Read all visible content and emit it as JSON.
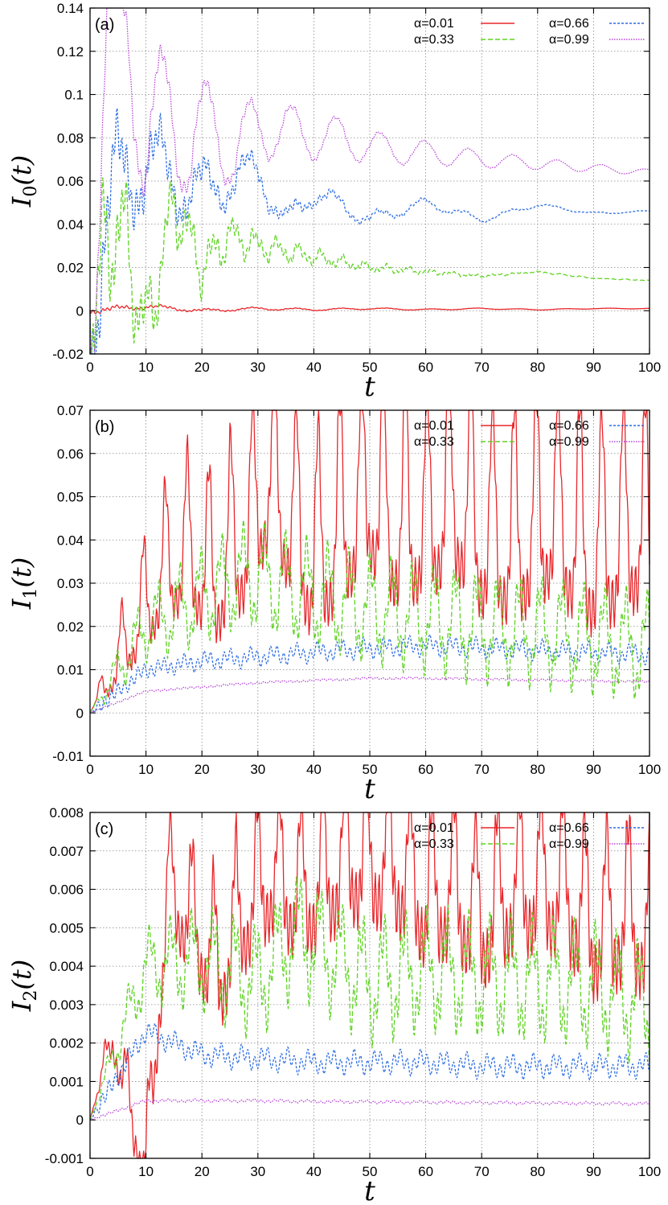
{
  "chart_data": [
    {
      "type": "line",
      "panel_label": "(a)",
      "ylabel": "I",
      "ylabel_sub": "0",
      "ylabel_suffix": "(t)",
      "xlabel": "t",
      "xlim": [
        0,
        100
      ],
      "ylim": [
        -0.02,
        0.14
      ],
      "xticks": [
        "0",
        "10",
        "20",
        "30",
        "40",
        "50",
        "60",
        "70",
        "80",
        "90",
        "100"
      ],
      "yticks": [
        "-0.02",
        "0",
        "0.02",
        "0.04",
        "0.06",
        "0.08",
        "0.1",
        "0.12",
        "0.14"
      ],
      "grid": true,
      "legend_position": "top-right",
      "series": [
        {
          "name": "α=0.01",
          "color": "#e8262a",
          "dash": "solid",
          "model": {
            "base": 0.0005,
            "amp": 0.001,
            "decay": 0.02,
            "period": 8,
            "jitter": 0.0012,
            "startPeak": 0.0
          },
          "x": [
            0,
            5,
            10,
            20,
            30,
            40,
            50,
            60,
            70,
            80,
            90,
            100
          ],
          "values": [
            0,
            0.001,
            0.002,
            0.0,
            0.001,
            0.0005,
            0.001,
            0.0005,
            0.001,
            0.0005,
            0.001,
            0.001
          ]
        },
        {
          "name": "α=0.66",
          "color": "#2f6fe0",
          "dash": "3 2",
          "model": {
            "base": 0.046,
            "amp": 0.03,
            "decay": 0.045,
            "period": 7.8,
            "jitter": 0.018,
            "startPeak": 0.09
          },
          "x": [
            0,
            5,
            10,
            15,
            20,
            25,
            30,
            35,
            40,
            50,
            60,
            70,
            80,
            90,
            100
          ],
          "values": [
            0,
            0.06,
            0.07,
            0.06,
            0.055,
            0.06,
            0.065,
            0.04,
            0.055,
            0.042,
            0.05,
            0.042,
            0.049,
            0.045,
            0.046
          ]
        },
        {
          "name": "α=0.33",
          "color": "#5fd323",
          "dash": "6 3",
          "model": {
            "base": 0.015,
            "amp": 0.03,
            "decay": 0.06,
            "period": 3.9,
            "jitter": 0.02,
            "startPeak": 0.07
          },
          "x": [
            0,
            5,
            10,
            15,
            20,
            25,
            30,
            40,
            50,
            60,
            70,
            80,
            90,
            100
          ],
          "values": [
            0,
            0.045,
            -0.01,
            0.05,
            0.02,
            0.035,
            0.03,
            0.025,
            0.02,
            0.018,
            0.016,
            0.018,
            0.015,
            0.014
          ]
        },
        {
          "name": "α=0.99",
          "color": "#b845d8",
          "dash": "1.5 1.5",
          "model": {
            "base": 0.066,
            "amp": 0.045,
            "decay": 0.035,
            "period": 7.9,
            "jitter": 0.01,
            "startPeak": 0.13
          },
          "x": [
            0,
            3,
            7,
            10,
            14,
            18,
            22,
            26,
            30,
            36,
            44,
            52,
            60,
            70,
            80,
            90,
            100
          ],
          "values": [
            0,
            0.12,
            0.133,
            0.07,
            0.1,
            0.07,
            0.091,
            0.07,
            0.087,
            0.082,
            0.08,
            0.075,
            0.073,
            0.07,
            0.068,
            0.066,
            0.064
          ]
        }
      ]
    },
    {
      "type": "line",
      "panel_label": "(b)",
      "ylabel": "I",
      "ylabel_sub": "1",
      "ylabel_suffix": "(t)",
      "xlabel": "t",
      "xlim": [
        0,
        100
      ],
      "ylim": [
        -0.01,
        0.07
      ],
      "xticks": [
        "0",
        "10",
        "20",
        "30",
        "40",
        "50",
        "60",
        "70",
        "80",
        "90",
        "100"
      ],
      "yticks": [
        "-0.01",
        "0",
        "0.01",
        "0.02",
        "0.03",
        "0.04",
        "0.05",
        "0.06",
        "0.07"
      ],
      "grid": true,
      "legend_position": "top-right",
      "series": [
        {
          "name": "α=0.01",
          "color": "#e8262a",
          "dash": "solid",
          "model": {
            "growBase": 0.018,
            "growAmp": 0.03,
            "rise": 0.07,
            "period": 3.9,
            "jitter": 0.006,
            "floor": 0.0,
            "shape": "spiky"
          },
          "x": [
            0,
            10,
            14,
            18,
            22,
            28,
            32,
            40,
            46,
            50,
            54,
            60,
            65,
            70,
            76,
            82,
            90,
            98,
            100
          ],
          "values": [
            0,
            0.028,
            0.038,
            0.042,
            0.036,
            0.047,
            0.061,
            0.041,
            0.051,
            0.058,
            0.05,
            0.051,
            0.057,
            0.048,
            0.046,
            0.053,
            0.044,
            0.05,
            0.045
          ]
        },
        {
          "name": "α=0.66",
          "color": "#2f6fe0",
          "dash": "3 2",
          "model": {
            "growBase": 0.0135,
            "growAmp": 0.003,
            "rise": 0.09,
            "period": 4.0,
            "jitter": 0.0015,
            "floor": 0.0,
            "shape": "smooth"
          },
          "x": [
            0,
            10,
            20,
            30,
            40,
            50,
            60,
            70,
            80,
            90,
            100
          ],
          "values": [
            0,
            0.01,
            0.012,
            0.013,
            0.014,
            0.015,
            0.0155,
            0.015,
            0.0145,
            0.014,
            0.0135
          ]
        },
        {
          "name": "α=0.33",
          "color": "#5fd323",
          "dash": "6 3",
          "model": {
            "growBase": 0.016,
            "growAmp": 0.01,
            "rise": 0.1,
            "period": 3.8,
            "jitter": 0.004,
            "floor": 0.0,
            "shape": "wavy"
          },
          "x": [
            0,
            10,
            20,
            28,
            38,
            50,
            60,
            70,
            80,
            90,
            100
          ],
          "values": [
            0,
            0.02,
            0.027,
            0.032,
            0.028,
            0.024,
            0.022,
            0.02,
            0.019,
            0.017,
            0.015
          ]
        },
        {
          "name": "α=0.99",
          "color": "#b845d8",
          "dash": "1.5 1.5",
          "model": {
            "growBase": 0.0075,
            "growAmp": 0.0003,
            "rise": 0.06,
            "period": 8.0,
            "jitter": 0.0002,
            "floor": 0.0,
            "shape": "smooth"
          },
          "x": [
            0,
            10,
            20,
            30,
            40,
            50,
            60,
            70,
            80,
            90,
            100
          ],
          "values": [
            0,
            0.005,
            0.006,
            0.007,
            0.0075,
            0.008,
            0.008,
            0.0078,
            0.0076,
            0.0074,
            0.0072
          ]
        }
      ]
    },
    {
      "type": "line",
      "panel_label": "(c)",
      "ylabel": "I",
      "ylabel_sub": "2",
      "ylabel_suffix": "(t)",
      "xlabel": "t",
      "xlim": [
        0,
        100
      ],
      "ylim": [
        -0.001,
        0.008
      ],
      "xticks": [
        "0",
        "10",
        "20",
        "30",
        "40",
        "50",
        "60",
        "70",
        "80",
        "90",
        "100"
      ],
      "yticks": [
        "-0.001",
        "0",
        "0.001",
        "0.002",
        "0.003",
        "0.004",
        "0.005",
        "0.006",
        "0.007",
        "0.008"
      ],
      "grid": true,
      "legend_position": "top-right",
      "series": [
        {
          "name": "α=0.01",
          "color": "#e8262a",
          "dash": "solid",
          "model": {
            "growBase": 0.0045,
            "growAmp": 0.0024,
            "rise": 0.08,
            "period": 3.9,
            "jitter": 0.0008,
            "floor": -0.001,
            "shape": "spiky"
          },
          "x": [
            0,
            4,
            10,
            14,
            18,
            23,
            27,
            32,
            38,
            42,
            46,
            50,
            54,
            60,
            65,
            70,
            75,
            80,
            85,
            90,
            95,
            100
          ],
          "values": [
            0,
            0.0023,
            -0.001,
            0.0065,
            0.0056,
            0.0043,
            0.0058,
            0.0069,
            0.0064,
            0.0068,
            0.0074,
            0.0073,
            0.0073,
            0.0063,
            0.0065,
            0.0057,
            0.0065,
            0.0067,
            0.0065,
            0.0055,
            0.0058,
            0.0055
          ]
        },
        {
          "name": "α=0.66",
          "color": "#2f6fe0",
          "dash": "3 2",
          "model": {
            "growBase": 0.00145,
            "growAmp": 0.0004,
            "rise": 0.15,
            "period": 4.0,
            "jitter": 0.0002,
            "floor": 0.0,
            "shape": "smooth"
          },
          "x": [
            0,
            10,
            20,
            30,
            40,
            50,
            60,
            70,
            80,
            90,
            100
          ],
          "values": [
            0,
            0.0023,
            0.0017,
            0.0016,
            0.0015,
            0.0015,
            0.0015,
            0.0014,
            0.0014,
            0.0014,
            0.0014
          ]
        },
        {
          "name": "α=0.33",
          "color": "#5fd323",
          "dash": "6 3",
          "model": {
            "growBase": 0.0033,
            "growAmp": 0.0012,
            "rise": 0.09,
            "period": 3.8,
            "jitter": 0.0006,
            "floor": 0.0,
            "shape": "wavy"
          },
          "x": [
            0,
            10,
            20,
            30,
            37,
            50,
            60,
            70,
            80,
            90,
            100
          ],
          "values": [
            0,
            0.004,
            0.0042,
            0.0036,
            0.0049,
            0.0036,
            0.0039,
            0.0037,
            0.0036,
            0.0035,
            0.003
          ]
        },
        {
          "name": "α=0.99",
          "color": "#b845d8",
          "dash": "1.5 1.5",
          "model": {
            "growBase": 0.00045,
            "growAmp": 5e-05,
            "rise": 0.2,
            "period": 5.0,
            "jitter": 3e-05,
            "floor": 0.0,
            "shape": "smooth"
          },
          "x": [
            0,
            10,
            20,
            30,
            40,
            50,
            60,
            70,
            80,
            90,
            100
          ],
          "values": [
            0,
            0.0005,
            0.0005,
            0.0005,
            0.00048,
            0.00047,
            0.00046,
            0.00045,
            0.00044,
            0.00043,
            0.00042
          ]
        }
      ]
    }
  ]
}
